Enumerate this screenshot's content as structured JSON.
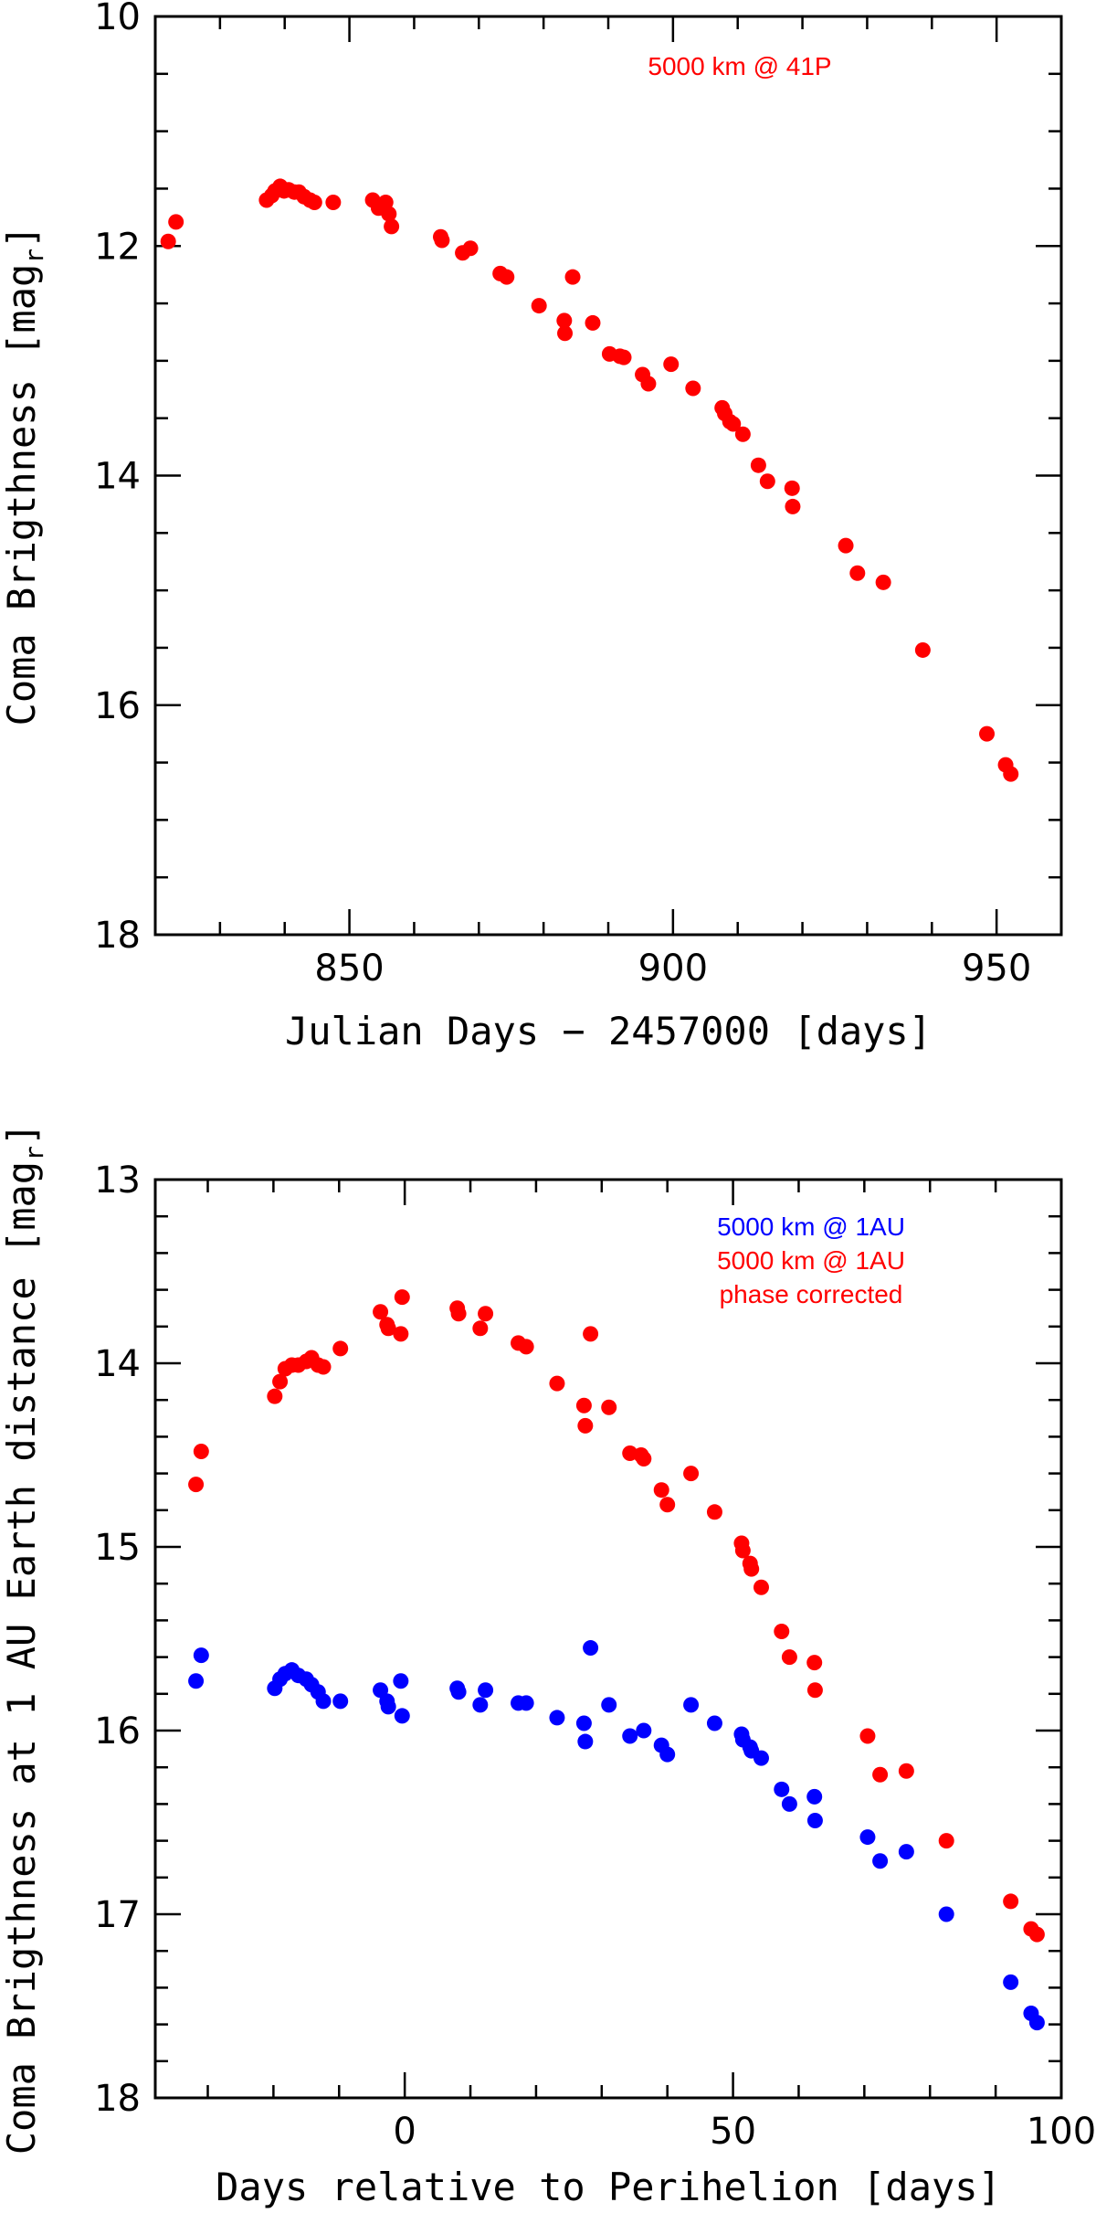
{
  "chart_data": [
    {
      "type": "scatter",
      "title": "",
      "xlabel": "Julian Days − 2457000 [days]",
      "ylabel": "Coma Brigthness [mag",
      "ylabel_sub": "r",
      "ylabel_close": "]",
      "xlim": [
        820,
        960
      ],
      "ylim": [
        10,
        18
      ],
      "y_inverted": true,
      "x_major_ticks": [
        850,
        900,
        950
      ],
      "x_tick_labels": [
        "850",
        "900",
        "950"
      ],
      "y_major_ticks": [
        10,
        12,
        14,
        16,
        18
      ],
      "y_tick_labels": [
        "10",
        "12",
        "14",
        "16",
        "18"
      ],
      "x_minor_step": 10,
      "y_minor_step": 0.5,
      "legend_position": "top-center",
      "series": [
        {
          "name": "5000 km @ 41P",
          "color": "#ff0000",
          "points": [
            [
              822.0,
              11.96
            ],
            [
              823.2,
              11.79
            ],
            [
              837.2,
              11.6
            ],
            [
              838.0,
              11.56
            ],
            [
              838.5,
              11.52
            ],
            [
              839.3,
              11.48
            ],
            [
              839.9,
              11.52
            ],
            [
              840.6,
              11.51
            ],
            [
              841.5,
              11.53
            ],
            [
              842.2,
              11.53
            ],
            [
              843.0,
              11.57
            ],
            [
              843.9,
              11.6
            ],
            [
              844.6,
              11.62
            ],
            [
              847.5,
              11.62
            ],
            [
              853.6,
              11.6
            ],
            [
              854.5,
              11.67
            ],
            [
              855.6,
              11.62
            ],
            [
              856.1,
              11.72
            ],
            [
              856.5,
              11.83
            ],
            [
              864.1,
              11.92
            ],
            [
              864.3,
              11.95
            ],
            [
              867.5,
              12.06
            ],
            [
              868.7,
              12.02
            ],
            [
              873.3,
              12.24
            ],
            [
              874.3,
              12.27
            ],
            [
              879.3,
              12.52
            ],
            [
              883.2,
              12.65
            ],
            [
              883.3,
              12.76
            ],
            [
              884.5,
              12.27
            ],
            [
              887.6,
              12.67
            ],
            [
              890.2,
              12.94
            ],
            [
              891.8,
              12.96
            ],
            [
              892.4,
              12.97
            ],
            [
              895.3,
              13.12
            ],
            [
              896.2,
              13.2
            ],
            [
              899.7,
              13.03
            ],
            [
              903.1,
              13.24
            ],
            [
              907.6,
              13.41
            ],
            [
              908.0,
              13.46
            ],
            [
              908.8,
              13.53
            ],
            [
              909.3,
              13.55
            ],
            [
              910.8,
              13.64
            ],
            [
              913.2,
              13.91
            ],
            [
              914.6,
              14.05
            ],
            [
              918.4,
              14.11
            ],
            [
              918.5,
              14.27
            ],
            [
              926.7,
              14.61
            ],
            [
              928.5,
              14.85
            ],
            [
              932.5,
              14.93
            ],
            [
              938.6,
              15.52
            ],
            [
              948.5,
              16.25
            ],
            [
              951.4,
              16.52
            ],
            [
              952.2,
              16.6
            ]
          ]
        }
      ]
    },
    {
      "type": "scatter",
      "title": "",
      "xlabel": "Days relative to Perihelion [days]",
      "ylabel": "Coma Brigthness at 1 AU Earth distance [mag",
      "ylabel_sub": "r",
      "ylabel_close": "]",
      "xlim": [
        -38,
        100
      ],
      "ylim": [
        13,
        18
      ],
      "y_inverted": true,
      "x_major_ticks": [
        0,
        50,
        100
      ],
      "x_tick_labels": [
        "0",
        "50",
        "100"
      ],
      "y_major_ticks": [
        13,
        14,
        15,
        16,
        17,
        18
      ],
      "y_tick_labels": [
        "13",
        "14",
        "15",
        "16",
        "17",
        "18"
      ],
      "x_minor_step": 10,
      "y_minor_step": 0.2,
      "legend_position": "top-right",
      "legend_lines": [
        {
          "text": "5000 km @ 1AU",
          "color": "#0000ff"
        },
        {
          "text": "5000 km @ 1AU",
          "color": "#ff0000"
        },
        {
          "text": "phase corrected",
          "color": "#ff0000"
        }
      ],
      "series": [
        {
          "name": "5000 km @ 1AU",
          "color": "#0000ff",
          "points": [
            [
              -31.8,
              15.73
            ],
            [
              -31.0,
              15.59
            ],
            [
              -19.8,
              15.77
            ],
            [
              -19.0,
              15.72
            ],
            [
              -18.2,
              15.69
            ],
            [
              -17.2,
              15.67
            ],
            [
              -16.2,
              15.7
            ],
            [
              -15.0,
              15.72
            ],
            [
              -14.2,
              15.75
            ],
            [
              -13.2,
              15.79
            ],
            [
              -12.4,
              15.84
            ],
            [
              -9.8,
              15.84
            ],
            [
              -3.7,
              15.78
            ],
            [
              -2.7,
              15.84
            ],
            [
              -2.5,
              15.87
            ],
            [
              -0.6,
              15.73
            ],
            [
              -0.4,
              15.92
            ],
            [
              8.0,
              15.77
            ],
            [
              8.2,
              15.79
            ],
            [
              11.5,
              15.86
            ],
            [
              12.3,
              15.78
            ],
            [
              17.3,
              15.85
            ],
            [
              18.5,
              15.85
            ],
            [
              23.2,
              15.93
            ],
            [
              27.3,
              15.96
            ],
            [
              27.5,
              16.06
            ],
            [
              28.3,
              15.55
            ],
            [
              31.1,
              15.86
            ],
            [
              34.3,
              16.03
            ],
            [
              36.4,
              16.0
            ],
            [
              39.1,
              16.08
            ],
            [
              40.0,
              16.13
            ],
            [
              43.6,
              15.86
            ],
            [
              47.2,
              15.96
            ],
            [
              51.3,
              16.02
            ],
            [
              51.5,
              16.05
            ],
            [
              52.6,
              16.09
            ],
            [
              52.8,
              16.11
            ],
            [
              54.3,
              16.15
            ],
            [
              57.4,
              16.32
            ],
            [
              58.6,
              16.4
            ],
            [
              62.4,
              16.36
            ],
            [
              62.5,
              16.49
            ],
            [
              70.5,
              16.58
            ],
            [
              72.4,
              16.71
            ],
            [
              76.4,
              16.66
            ],
            [
              82.5,
              17.0
            ],
            [
              92.3,
              17.37
            ],
            [
              95.4,
              17.54
            ],
            [
              96.3,
              17.59
            ]
          ]
        },
        {
          "name": "5000 km @ 1AU phase corrected",
          "color": "#ff0000",
          "points": [
            [
              -31.8,
              14.66
            ],
            [
              -31.0,
              14.48
            ],
            [
              -19.8,
              14.18
            ],
            [
              -19.0,
              14.1
            ],
            [
              -18.2,
              14.03
            ],
            [
              -17.2,
              14.01
            ],
            [
              -16.2,
              14.01
            ],
            [
              -15.0,
              13.99
            ],
            [
              -14.2,
              13.97
            ],
            [
              -13.2,
              14.01
            ],
            [
              -12.4,
              14.02
            ],
            [
              -9.8,
              13.92
            ],
            [
              -3.7,
              13.72
            ],
            [
              -2.7,
              13.79
            ],
            [
              -2.5,
              13.81
            ],
            [
              -0.6,
              13.84
            ],
            [
              -0.4,
              13.64
            ],
            [
              8.0,
              13.7
            ],
            [
              8.2,
              13.73
            ],
            [
              11.5,
              13.81
            ],
            [
              12.3,
              13.73
            ],
            [
              17.3,
              13.89
            ],
            [
              18.5,
              13.91
            ],
            [
              23.2,
              14.11
            ],
            [
              27.3,
              14.23
            ],
            [
              27.5,
              14.34
            ],
            [
              28.3,
              13.84
            ],
            [
              31.1,
              14.24
            ],
            [
              34.3,
              14.49
            ],
            [
              36.0,
              14.5
            ],
            [
              36.4,
              14.52
            ],
            [
              39.1,
              14.69
            ],
            [
              40.0,
              14.77
            ],
            [
              43.6,
              14.6
            ],
            [
              47.2,
              14.81
            ],
            [
              51.3,
              14.98
            ],
            [
              51.5,
              15.02
            ],
            [
              52.6,
              15.09
            ],
            [
              52.8,
              15.12
            ],
            [
              54.3,
              15.22
            ],
            [
              57.4,
              15.46
            ],
            [
              58.6,
              15.6
            ],
            [
              62.4,
              15.63
            ],
            [
              62.5,
              15.78
            ],
            [
              70.5,
              16.03
            ],
            [
              72.4,
              16.24
            ],
            [
              76.4,
              16.22
            ],
            [
              82.5,
              16.6
            ],
            [
              92.3,
              16.93
            ],
            [
              95.4,
              17.08
            ],
            [
              96.3,
              17.11
            ]
          ]
        }
      ]
    }
  ]
}
